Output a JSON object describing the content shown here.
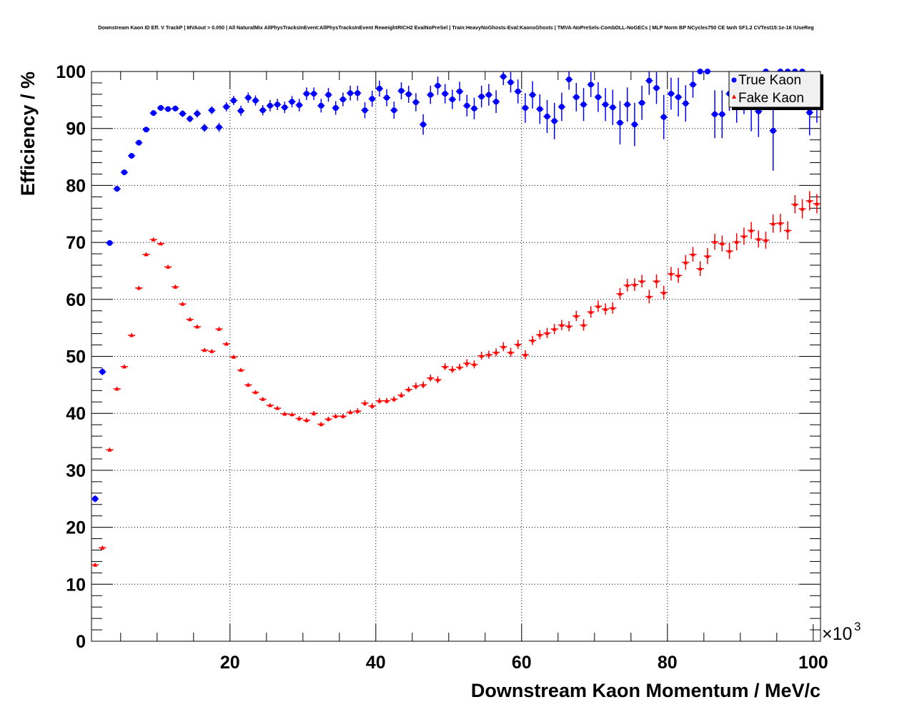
{
  "chart_data": {
    "type": "scatter",
    "title": "Downstream Kaon ID Eff. V TrackP | MVAout > 0.050 | All NaturalMix AllPhysTracksInEvent:AllPhysTracksInEvent ReweightRICH2 EvalNoPreSel | Train:HeavyNoGhosts-Eval:KaonsGhosts | TMVA-NoPreSels-CombDLL-NoGECs | MLP Norm BP NCycles750 CE tanh SF1.2 CVTest15:1e-16 !UseReg",
    "xlabel": "Downstream Kaon Momentum / MeV/c",
    "ylabel": "Efficiency / %",
    "x_exponent_label": "×10",
    "x_exponent_power": "3",
    "xlim": [
      1,
      101
    ],
    "ylim": [
      0,
      100
    ],
    "x_ticks": [
      "20",
      "40",
      "60",
      "80",
      "100"
    ],
    "y_ticks": [
      "0",
      "10",
      "20",
      "30",
      "40",
      "50",
      "60",
      "70",
      "80",
      "90",
      "100"
    ],
    "grid": true,
    "legend_position": "top-right",
    "x_start": 1.5,
    "x_step": 1,
    "series": [
      {
        "name": "True Kaon",
        "color": "#0000ff",
        "marker": "circle",
        "values": [
          25.0,
          47.3,
          69.9,
          79.4,
          82.3,
          85.2,
          87.5,
          89.8,
          92.7,
          93.6,
          93.4,
          93.5,
          92.6,
          91.7,
          92.6,
          90.1,
          93.2,
          90.2,
          93.8,
          94.9,
          93.1,
          95.4,
          94.9,
          93.2,
          94.0,
          94.2,
          93.7,
          94.7,
          94.1,
          96.1,
          96.1,
          94.0,
          95.9,
          93.6,
          95.1,
          96.2,
          96.2,
          93.2,
          95.2,
          97.0,
          95.4,
          93.2,
          96.6,
          96.0,
          94.6,
          90.7,
          95.9,
          97.5,
          96.1,
          95.1,
          96.5,
          94.0,
          93.5,
          95.6,
          95.9,
          94.7,
          99.1,
          98.1,
          96.5,
          93.6,
          95.9,
          93.4,
          92.1,
          91.3,
          93.8,
          98.6,
          95.5,
          94.2,
          97.7,
          95.5,
          94.2,
          93.7,
          91.0,
          94.2,
          90.7,
          94.5,
          98.4,
          97.1,
          92.0,
          96.1,
          95.5,
          94.4,
          97.7,
          100,
          100,
          92.5,
          92.5,
          96.1,
          95.0,
          96.5,
          94.0,
          93.0,
          100,
          89.6,
          100,
          100,
          100,
          100,
          92.8,
          95.0
        ],
        "errors": [
          0.6,
          0.6,
          0.5,
          0.4,
          0.4,
          0.4,
          0.4,
          0.4,
          0.4,
          0.5,
          0.5,
          0.5,
          0.6,
          0.6,
          0.7,
          0.7,
          0.7,
          0.8,
          0.8,
          0.8,
          0.9,
          0.9,
          0.9,
          0.9,
          1.0,
          1.0,
          1.0,
          1.0,
          1.1,
          1.1,
          1.1,
          1.2,
          1.2,
          1.2,
          1.2,
          1.3,
          1.3,
          1.4,
          1.4,
          1.4,
          1.5,
          1.5,
          1.5,
          1.5,
          1.6,
          1.8,
          1.6,
          1.6,
          1.7,
          1.7,
          1.7,
          1.9,
          1.9,
          1.9,
          1.9,
          2.0,
          1.5,
          1.8,
          2.1,
          2.6,
          2.4,
          2.6,
          2.9,
          3.2,
          2.5,
          1.8,
          2.5,
          2.9,
          2.2,
          2.6,
          2.9,
          3.1,
          3.8,
          3.0,
          3.8,
          3.0,
          2.5,
          2.8,
          3.9,
          2.8,
          3.4,
          3.2,
          2.3,
          0,
          0,
          4.2,
          4.2,
          3.0,
          4.0,
          4.0,
          4.5,
          4.5,
          0,
          7.0,
          0,
          0,
          0,
          0,
          4.0,
          4.0
        ]
      },
      {
        "name": "Fake Kaon",
        "color": "#ff0000",
        "marker": "triangle",
        "values": [
          13.4,
          16.4,
          33.6,
          44.3,
          48.2,
          53.7,
          62.0,
          67.9,
          70.5,
          69.8,
          65.7,
          62.2,
          59.2,
          56.5,
          55.2,
          51.1,
          50.9,
          54.8,
          52.2,
          49.9,
          47.6,
          45.0,
          43.7,
          42.5,
          41.4,
          40.9,
          39.9,
          39.8,
          39.1,
          38.8,
          40.0,
          38.1,
          39.0,
          39.5,
          39.5,
          40.2,
          40.4,
          41.8,
          41.3,
          42.2,
          42.2,
          42.5,
          43.2,
          44.2,
          44.8,
          45.0,
          46.2,
          45.9,
          48.2,
          47.7,
          48.1,
          48.8,
          48.6,
          50.1,
          50.3,
          50.7,
          51.7,
          50.7,
          52.1,
          50.3,
          52.8,
          53.8,
          54.1,
          54.8,
          55.5,
          55.3,
          57.1,
          55.5,
          57.8,
          58.8,
          58.3,
          58.5,
          61.0,
          62.5,
          62.6,
          63.2,
          60.5,
          63.2,
          61.2,
          64.5,
          64.2,
          66.5,
          67.9,
          65.4,
          67.6,
          70.1,
          69.8,
          68.5,
          70.1,
          71.1,
          72.1,
          70.6,
          70.4,
          73.3,
          73.4,
          72.1,
          76.7,
          75.9,
          77.3,
          76.8
        ],
        "errors": [
          0.3,
          0.3,
          0.3,
          0.3,
          0.3,
          0.3,
          0.3,
          0.3,
          0.3,
          0.3,
          0.3,
          0.3,
          0.3,
          0.3,
          0.3,
          0.3,
          0.3,
          0.3,
          0.3,
          0.3,
          0.3,
          0.3,
          0.3,
          0.3,
          0.3,
          0.3,
          0.3,
          0.3,
          0.4,
          0.4,
          0.4,
          0.4,
          0.4,
          0.4,
          0.4,
          0.4,
          0.5,
          0.5,
          0.5,
          0.5,
          0.5,
          0.5,
          0.5,
          0.5,
          0.6,
          0.6,
          0.6,
          0.6,
          0.6,
          0.6,
          0.6,
          0.7,
          0.7,
          0.7,
          0.7,
          0.7,
          0.8,
          0.8,
          0.8,
          0.8,
          0.8,
          0.8,
          0.9,
          0.9,
          0.9,
          0.9,
          0.9,
          1.0,
          1.0,
          1.0,
          1.0,
          1.0,
          1.0,
          1.1,
          1.1,
          1.1,
          1.2,
          1.2,
          1.2,
          1.2,
          1.3,
          1.3,
          1.3,
          1.3,
          1.4,
          1.4,
          1.4,
          1.4,
          1.5,
          1.5,
          1.5,
          1.5,
          1.5,
          1.6,
          1.6,
          1.6,
          1.6,
          1.7,
          1.7,
          1.7
        ]
      }
    ]
  }
}
